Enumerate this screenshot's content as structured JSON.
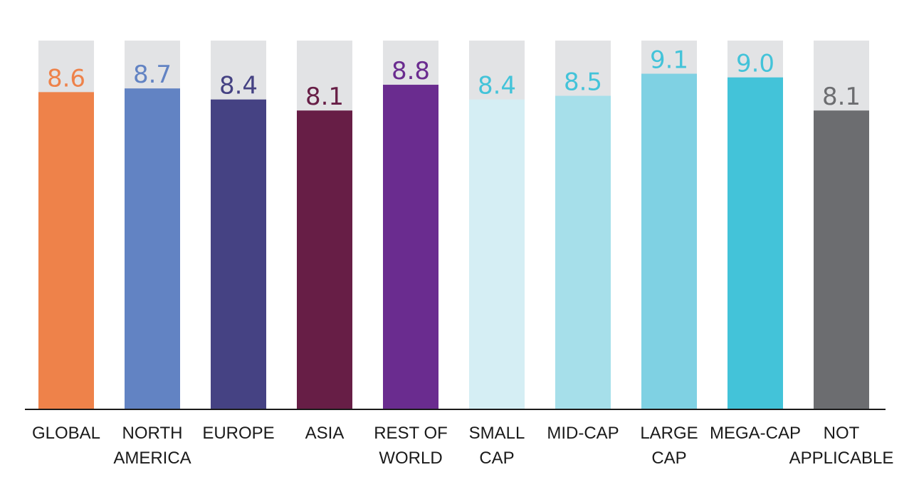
{
  "chart_data": {
    "type": "bar",
    "categories": [
      [
        "GLOBAL"
      ],
      [
        "NORTH",
        "AMERICA"
      ],
      [
        "EUROPE"
      ],
      [
        "ASIA"
      ],
      [
        "REST OF",
        "WORLD"
      ],
      [
        "SMALL",
        "CAP"
      ],
      [
        "MID-CAP"
      ],
      [
        "LARGE",
        "CAP"
      ],
      [
        "MEGA-CAP"
      ],
      [
        "NOT",
        "APPLICABLE"
      ]
    ],
    "values": [
      8.6,
      8.7,
      8.4,
      8.1,
      8.8,
      8.4,
      8.5,
      9.1,
      9.0,
      8.1
    ],
    "value_labels": [
      "8.6",
      "8.7",
      "8.4",
      "8.1",
      "8.8",
      "8.4",
      "8.5",
      "9.1",
      "9.0",
      "8.1"
    ],
    "ylim": [
      0,
      10
    ],
    "grid": false,
    "legend": "none",
    "background_bar_color": "#e2e3e5",
    "bar_colors": [
      "#ee824a",
      "#6283c3",
      "#454283",
      "#671e46",
      "#6a2c8f",
      "#d5eef4",
      "#a6dfea",
      "#7fd1e3",
      "#43c3d9",
      "#6c6d70"
    ],
    "label_colors": [
      "#ee824a",
      "#6283c3",
      "#454283",
      "#671e46",
      "#6a2c8f",
      "#43c3d9",
      "#43c3d9",
      "#43c3d9",
      "#43c3d9",
      "#6c6d70"
    ]
  }
}
